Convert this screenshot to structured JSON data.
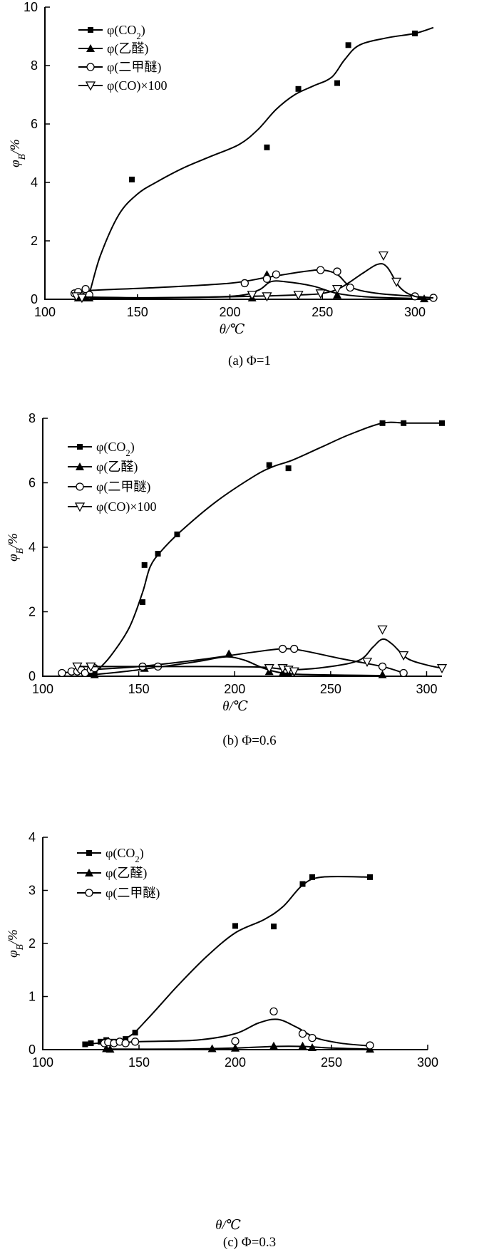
{
  "chart_data": [
    {
      "type": "scatter",
      "caption": "(a) Φ=1",
      "xlabel": "θ/℃",
      "ylabel": "φB/%",
      "xlim": [
        100,
        310
      ],
      "ylim": [
        0,
        10
      ],
      "xticks": [
        100,
        150,
        200,
        250,
        300
      ],
      "yticks": [
        0,
        2,
        4,
        6,
        8,
        10
      ],
      "legend_position": "top-left",
      "series": [
        {
          "name": "φ(CO2)",
          "marker": "square",
          "points": [
            [
              118,
              0.1
            ],
            [
              120,
              0.05
            ],
            [
              122,
              0.05
            ],
            [
              124,
              0.15
            ],
            [
              147,
              4.1
            ],
            [
              220,
              5.2
            ],
            [
              237,
              7.2
            ],
            [
              258,
              7.4
            ],
            [
              264,
              8.7
            ],
            [
              300,
              9.1
            ]
          ],
          "curve": [
            [
              118,
              0.05
            ],
            [
              122,
              0.1
            ],
            [
              124,
              0.2
            ],
            [
              130,
              1.5
            ],
            [
              140,
              2.9
            ],
            [
              150,
              3.6
            ],
            [
              160,
              4.0
            ],
            [
              175,
              4.5
            ],
            [
              190,
              4.9
            ],
            [
              205,
              5.3
            ],
            [
              215,
              5.8
            ],
            [
              225,
              6.5
            ],
            [
              235,
              7.0
            ],
            [
              245,
              7.3
            ],
            [
              255,
              7.6
            ],
            [
              262,
              8.2
            ],
            [
              270,
              8.7
            ],
            [
              285,
              8.95
            ],
            [
              300,
              9.1
            ],
            [
              310,
              9.3
            ]
          ]
        },
        {
          "name": "φ(乙醛)",
          "marker": "triangle-up",
          "points": [
            [
              118,
              0.05
            ],
            [
              122,
              0.05
            ],
            [
              124,
              0.05
            ],
            [
              212,
              0.05
            ],
            [
              220,
              0.85
            ],
            [
              258,
              0.15
            ],
            [
              305,
              0.02
            ]
          ],
          "curve": [
            [
              118,
              0.02
            ],
            [
              150,
              0.05
            ],
            [
              200,
              0.1
            ],
            [
              215,
              0.3
            ],
            [
              222,
              0.6
            ],
            [
              230,
              0.6
            ],
            [
              245,
              0.45
            ],
            [
              258,
              0.2
            ],
            [
              275,
              0.08
            ],
            [
              305,
              0.02
            ]
          ]
        },
        {
          "name": "φ(二甲醚)",
          "marker": "circle",
          "points": [
            [
              116,
              0.2
            ],
            [
              118,
              0.25
            ],
            [
              120,
              0.1
            ],
            [
              122,
              0.35
            ],
            [
              124,
              0.15
            ],
            [
              208,
              0.55
            ],
            [
              220,
              0.7
            ],
            [
              225,
              0.85
            ],
            [
              249,
              1.0
            ],
            [
              258,
              0.95
            ],
            [
              265,
              0.4
            ],
            [
              300,
              0.1
            ],
            [
              310,
              0.05
            ]
          ],
          "curve": [
            [
              118,
              0.2
            ],
            [
              124,
              0.3
            ],
            [
              160,
              0.4
            ],
            [
              200,
              0.55
            ],
            [
              220,
              0.75
            ],
            [
              240,
              0.95
            ],
            [
              250,
              1.0
            ],
            [
              258,
              0.85
            ],
            [
              266,
              0.4
            ],
            [
              280,
              0.2
            ],
            [
              300,
              0.1
            ],
            [
              310,
              0.05
            ]
          ]
        },
        {
          "name": "φ(CO)×100",
          "marker": "triangle-down",
          "points": [
            [
              117,
              0.1
            ],
            [
              120,
              0.05
            ],
            [
              212,
              0.15
            ],
            [
              220,
              0.1
            ],
            [
              237,
              0.15
            ],
            [
              249,
              0.2
            ],
            [
              258,
              0.35
            ],
            [
              283,
              1.5
            ],
            [
              290,
              0.6
            ]
          ],
          "curve": [
            [
              117,
              0.08
            ],
            [
              160,
              0.05
            ],
            [
              210,
              0.1
            ],
            [
              237,
              0.15
            ],
            [
              250,
              0.2
            ],
            [
              260,
              0.4
            ],
            [
              272,
              0.9
            ],
            [
              280,
              1.2
            ],
            [
              285,
              1.1
            ],
            [
              292,
              0.4
            ],
            [
              300,
              0.1
            ],
            [
              310,
              0.05
            ]
          ]
        }
      ]
    },
    {
      "type": "scatter",
      "caption": "(b) Φ=0.6",
      "xlabel": "θ/℃",
      "ylabel": "φB/%",
      "xlim": [
        100,
        308
      ],
      "ylim": [
        0,
        8
      ],
      "xticks": [
        100,
        150,
        200,
        250,
        300
      ],
      "yticks": [
        0,
        2,
        4,
        6,
        8
      ],
      "legend_position": "top-left",
      "series": [
        {
          "name": "φ(CO2)",
          "marker": "square",
          "points": [
            [
              125,
              0.1
            ],
            [
              127,
              0.1
            ],
            [
              152,
              2.3
            ],
            [
              153,
              3.45
            ],
            [
              160,
              3.8
            ],
            [
              170,
              4.4
            ],
            [
              218,
              6.55
            ],
            [
              228,
              6.45
            ],
            [
              277,
              7.85
            ],
            [
              288,
              7.85
            ],
            [
              308,
              7.85
            ]
          ],
          "curve": [
            [
              127,
              0.1
            ],
            [
              135,
              0.6
            ],
            [
              145,
              1.5
            ],
            [
              152,
              2.6
            ],
            [
              156,
              3.4
            ],
            [
              162,
              3.9
            ],
            [
              172,
              4.5
            ],
            [
              190,
              5.4
            ],
            [
              210,
              6.2
            ],
            [
              220,
              6.5
            ],
            [
              230,
              6.7
            ],
            [
              245,
              7.1
            ],
            [
              260,
              7.5
            ],
            [
              277,
              7.85
            ],
            [
              290,
              7.85
            ],
            [
              308,
              7.85
            ]
          ]
        },
        {
          "name": "φ(乙醛)",
          "marker": "triangle-up",
          "points": [
            [
              127,
              0.05
            ],
            [
              153,
              0.25
            ],
            [
              197,
              0.7
            ],
            [
              218,
              0.15
            ],
            [
              225,
              0.1
            ],
            [
              228,
              0.1
            ],
            [
              277,
              0.05
            ]
          ],
          "curve": [
            [
              127,
              0.05
            ],
            [
              150,
              0.2
            ],
            [
              180,
              0.45
            ],
            [
              195,
              0.6
            ],
            [
              205,
              0.5
            ],
            [
              215,
              0.25
            ],
            [
              225,
              0.1
            ],
            [
              240,
              0.05
            ],
            [
              277,
              0.02
            ]
          ]
        },
        {
          "name": "φ(二甲醚)",
          "marker": "circle",
          "points": [
            [
              110,
              0.1
            ],
            [
              115,
              0.15
            ],
            [
              118,
              0.15
            ],
            [
              120,
              0.2
            ],
            [
              122,
              0.1
            ],
            [
              125,
              0.2
            ],
            [
              127,
              0.25
            ],
            [
              152,
              0.3
            ],
            [
              160,
              0.3
            ],
            [
              225,
              0.85
            ],
            [
              231,
              0.85
            ],
            [
              277,
              0.3
            ],
            [
              288,
              0.1
            ]
          ],
          "curve": [
            [
              110,
              0.1
            ],
            [
              125,
              0.2
            ],
            [
              150,
              0.3
            ],
            [
              180,
              0.5
            ],
            [
              210,
              0.75
            ],
            [
              225,
              0.85
            ],
            [
              235,
              0.8
            ],
            [
              255,
              0.55
            ],
            [
              277,
              0.3
            ],
            [
              288,
              0.1
            ]
          ]
        },
        {
          "name": "φ(CO)×100",
          "marker": "triangle-down",
          "points": [
            [
              118,
              0.3
            ],
            [
              125,
              0.3
            ],
            [
              218,
              0.25
            ],
            [
              225,
              0.25
            ],
            [
              228,
              0.2
            ],
            [
              231,
              0.15
            ],
            [
              269,
              0.45
            ],
            [
              277,
              1.45
            ],
            [
              288,
              0.65
            ],
            [
              308,
              0.25
            ]
          ],
          "curve": [
            [
              118,
              0.3
            ],
            [
              150,
              0.3
            ],
            [
              190,
              0.3
            ],
            [
              215,
              0.28
            ],
            [
              230,
              0.2
            ],
            [
              250,
              0.3
            ],
            [
              265,
              0.5
            ],
            [
              272,
              0.9
            ],
            [
              277,
              1.15
            ],
            [
              282,
              1.0
            ],
            [
              290,
              0.55
            ],
            [
              300,
              0.35
            ],
            [
              308,
              0.25
            ]
          ]
        }
      ]
    },
    {
      "type": "scatter",
      "caption": "(c) Φ=0.3",
      "xlabel": "θ/℃",
      "ylabel": "φB/%",
      "xlim": [
        100,
        300
      ],
      "ylim": [
        0,
        4
      ],
      "xticks": [
        100,
        150,
        200,
        250,
        300
      ],
      "yticks": [
        0,
        1,
        2,
        3,
        4
      ],
      "legend_position": "top-left",
      "series": [
        {
          "name": "φ(CO2)",
          "marker": "square",
          "points": [
            [
              122,
              0.1
            ],
            [
              125,
              0.12
            ],
            [
              130,
              0.15
            ],
            [
              133,
              0.18
            ],
            [
              137,
              0.15
            ],
            [
              143,
              0.2
            ],
            [
              148,
              0.32
            ],
            [
              200,
              2.33
            ],
            [
              220,
              2.32
            ],
            [
              235,
              3.12
            ],
            [
              240,
              3.25
            ],
            [
              270,
              3.25
            ]
          ],
          "curve": [
            [
              122,
              0.1
            ],
            [
              135,
              0.15
            ],
            [
              145,
              0.25
            ],
            [
              155,
              0.6
            ],
            [
              170,
              1.2
            ],
            [
              185,
              1.75
            ],
            [
              200,
              2.2
            ],
            [
              215,
              2.45
            ],
            [
              225,
              2.7
            ],
            [
              235,
              3.1
            ],
            [
              245,
              3.25
            ],
            [
              270,
              3.25
            ]
          ]
        },
        {
          "name": "φ(乙醛)",
          "marker": "triangle-up",
          "points": [
            [
              133,
              0.02
            ],
            [
              135,
              0.01
            ],
            [
              188,
              0.02
            ],
            [
              200,
              0.03
            ],
            [
              220,
              0.07
            ],
            [
              235,
              0.07
            ],
            [
              240,
              0.04
            ],
            [
              270,
              0.01
            ]
          ],
          "curve": [
            [
              133,
              0.01
            ],
            [
              170,
              0.01
            ],
            [
              200,
              0.03
            ],
            [
              220,
              0.06
            ],
            [
              235,
              0.06
            ],
            [
              250,
              0.03
            ],
            [
              270,
              0.01
            ]
          ]
        },
        {
          "name": "φ(二甲醚)",
          "marker": "circle",
          "points": [
            [
              132,
              0.12
            ],
            [
              134,
              0.14
            ],
            [
              137,
              0.12
            ],
            [
              140,
              0.15
            ],
            [
              143,
              0.12
            ],
            [
              148,
              0.15
            ],
            [
              200,
              0.16
            ],
            [
              220,
              0.72
            ],
            [
              235,
              0.3
            ],
            [
              240,
              0.22
            ],
            [
              270,
              0.08
            ]
          ],
          "curve": [
            [
              132,
              0.12
            ],
            [
              150,
              0.15
            ],
            [
              180,
              0.18
            ],
            [
              200,
              0.3
            ],
            [
              212,
              0.5
            ],
            [
              222,
              0.57
            ],
            [
              232,
              0.42
            ],
            [
              242,
              0.22
            ],
            [
              255,
              0.12
            ],
            [
              270,
              0.07
            ]
          ]
        }
      ]
    }
  ]
}
